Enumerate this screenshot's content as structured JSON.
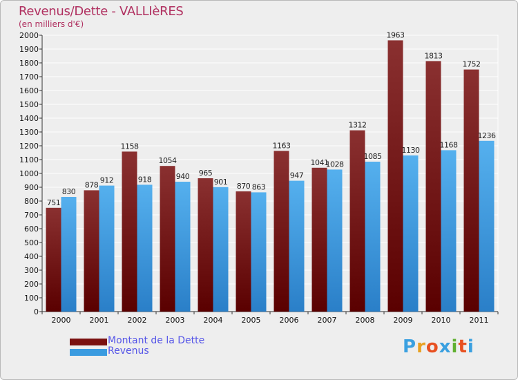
{
  "chart_data": {
    "type": "bar",
    "title": "Revenus/Dette - VALLIèRES",
    "subtitle": "(en milliers d'€)",
    "xlabel": "",
    "ylabel": "",
    "ylim": [
      0,
      2000
    ],
    "ytick_step": 100,
    "grid": true,
    "categories": [
      "2000",
      "2001",
      "2002",
      "2003",
      "2004",
      "2005",
      "2006",
      "2007",
      "2008",
      "2009",
      "2010",
      "2011"
    ],
    "series": [
      {
        "name": "Montant de la Dette",
        "color": "#7a1a1a",
        "values": [
          751,
          878,
          1158,
          1054,
          965,
          870,
          1163,
          1041,
          1312,
          1963,
          1813,
          1752
        ]
      },
      {
        "name": "Revenus",
        "color": "#3a9be0",
        "values": [
          830,
          912,
          918,
          940,
          901,
          863,
          947,
          1028,
          1085,
          1130,
          1168,
          1236
        ]
      }
    ],
    "legend": "bottom-left"
  },
  "logo": {
    "letters": [
      "P",
      "r",
      "o",
      "x",
      "i",
      "t",
      "i"
    ],
    "colors": [
      "#3aa0e0",
      "#e8a020",
      "#e85020",
      "#3aa0e0",
      "#60b030",
      "#e85020",
      "#3aa0e0"
    ]
  }
}
